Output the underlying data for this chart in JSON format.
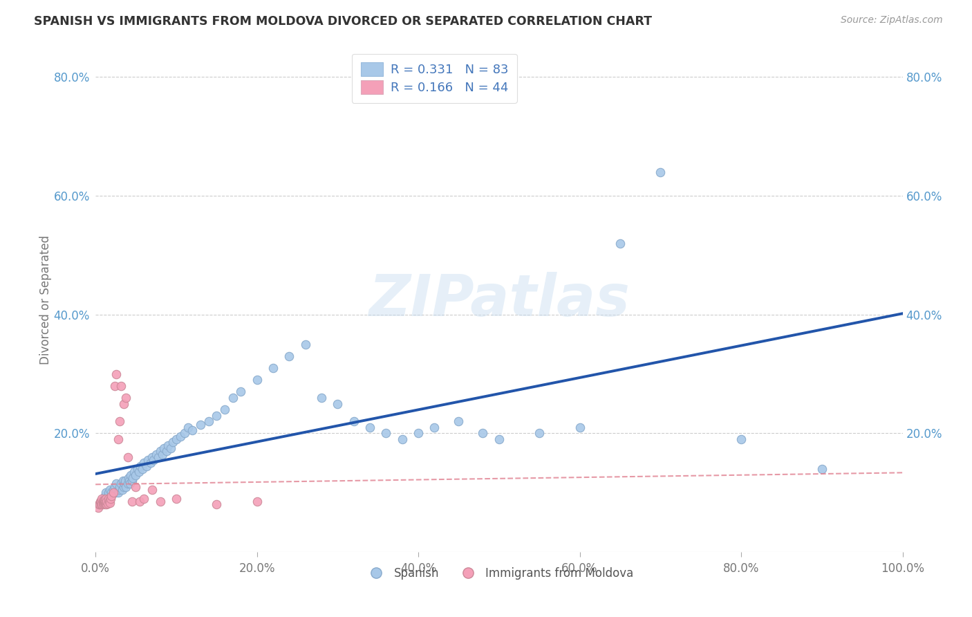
{
  "title": "SPANISH VS IMMIGRANTS FROM MOLDOVA DIVORCED OR SEPARATED CORRELATION CHART",
  "source": "Source: ZipAtlas.com",
  "ylabel": "Divorced or Separated",
  "xlim": [
    0.0,
    1.0
  ],
  "ylim": [
    0.0,
    0.85
  ],
  "x_tick_labels": [
    "0.0%",
    "20.0%",
    "40.0%",
    "60.0%",
    "80.0%",
    "100.0%"
  ],
  "x_tick_vals": [
    0.0,
    0.2,
    0.4,
    0.6,
    0.8,
    1.0
  ],
  "y_tick_labels": [
    "20.0%",
    "40.0%",
    "60.0%",
    "80.0%"
  ],
  "y_tick_vals": [
    0.2,
    0.4,
    0.6,
    0.8
  ],
  "blue_color": "#a8c8e8",
  "pink_color": "#f4a0b8",
  "blue_line_color": "#2255aa",
  "pink_line_color": "#e08090",
  "watermark": "ZIPatlas",
  "legend_R1": "R = 0.331",
  "legend_N1": "N = 83",
  "legend_R2": "R = 0.166",
  "legend_N2": "N = 44",
  "blue_scatter_x": [
    0.005,
    0.008,
    0.01,
    0.012,
    0.013,
    0.015,
    0.016,
    0.018,
    0.02,
    0.022,
    0.024,
    0.025,
    0.026,
    0.028,
    0.03,
    0.03,
    0.032,
    0.033,
    0.034,
    0.035,
    0.036,
    0.037,
    0.038,
    0.04,
    0.041,
    0.042,
    0.043,
    0.044,
    0.045,
    0.046,
    0.048,
    0.05,
    0.052,
    0.054,
    0.056,
    0.058,
    0.06,
    0.063,
    0.065,
    0.068,
    0.07,
    0.072,
    0.075,
    0.078,
    0.08,
    0.083,
    0.085,
    0.088,
    0.09,
    0.093,
    0.096,
    0.1,
    0.105,
    0.11,
    0.115,
    0.12,
    0.13,
    0.14,
    0.15,
    0.16,
    0.17,
    0.18,
    0.2,
    0.22,
    0.24,
    0.26,
    0.28,
    0.3,
    0.32,
    0.34,
    0.36,
    0.38,
    0.4,
    0.42,
    0.45,
    0.48,
    0.5,
    0.55,
    0.6,
    0.65,
    0.7,
    0.8,
    0.9
  ],
  "blue_scatter_y": [
    0.08,
    0.085,
    0.09,
    0.095,
    0.1,
    0.095,
    0.1,
    0.105,
    0.1,
    0.105,
    0.11,
    0.1,
    0.115,
    0.1,
    0.105,
    0.11,
    0.115,
    0.105,
    0.12,
    0.11,
    0.115,
    0.12,
    0.11,
    0.115,
    0.125,
    0.12,
    0.115,
    0.13,
    0.12,
    0.125,
    0.135,
    0.13,
    0.14,
    0.135,
    0.145,
    0.14,
    0.15,
    0.145,
    0.155,
    0.15,
    0.16,
    0.155,
    0.165,
    0.16,
    0.17,
    0.165,
    0.175,
    0.17,
    0.18,
    0.175,
    0.185,
    0.19,
    0.195,
    0.2,
    0.21,
    0.205,
    0.215,
    0.22,
    0.23,
    0.24,
    0.26,
    0.27,
    0.29,
    0.31,
    0.33,
    0.35,
    0.26,
    0.25,
    0.22,
    0.21,
    0.2,
    0.19,
    0.2,
    0.21,
    0.22,
    0.2,
    0.19,
    0.2,
    0.21,
    0.52,
    0.64,
    0.19,
    0.14
  ],
  "pink_scatter_x": [
    0.003,
    0.004,
    0.005,
    0.006,
    0.007,
    0.007,
    0.008,
    0.008,
    0.009,
    0.009,
    0.01,
    0.01,
    0.011,
    0.011,
    0.012,
    0.012,
    0.013,
    0.013,
    0.014,
    0.014,
    0.015,
    0.016,
    0.017,
    0.018,
    0.019,
    0.02,
    0.022,
    0.024,
    0.026,
    0.028,
    0.03,
    0.032,
    0.035,
    0.038,
    0.04,
    0.045,
    0.05,
    0.055,
    0.06,
    0.07,
    0.08,
    0.1,
    0.15,
    0.2
  ],
  "pink_scatter_y": [
    0.075,
    0.08,
    0.08,
    0.085,
    0.08,
    0.085,
    0.08,
    0.09,
    0.085,
    0.08,
    0.082,
    0.088,
    0.083,
    0.087,
    0.08,
    0.085,
    0.082,
    0.09,
    0.08,
    0.085,
    0.082,
    0.09,
    0.085,
    0.083,
    0.09,
    0.095,
    0.1,
    0.28,
    0.3,
    0.19,
    0.22,
    0.28,
    0.25,
    0.26,
    0.16,
    0.085,
    0.11,
    0.085,
    0.09,
    0.105,
    0.085,
    0.09,
    0.08,
    0.085
  ]
}
